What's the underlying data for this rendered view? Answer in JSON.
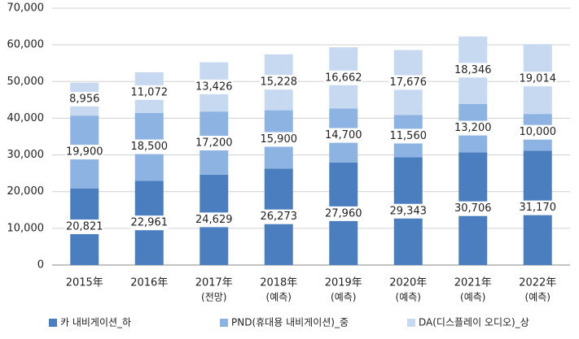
{
  "chart_data": {
    "type": "stacked-bar",
    "categories": [
      "2015年",
      "2016年",
      "2017年",
      "2018年",
      "2019年",
      "2020年",
      "2021年",
      "2022年"
    ],
    "category_notes": [
      null,
      null,
      "(전망)",
      "(예측)",
      "(예측)",
      "(예측)",
      "(예측)",
      "(예측)"
    ],
    "series": [
      {
        "name": "카 내비게이션_하",
        "color": "#4a7ebf",
        "values": [
          20821,
          22961,
          24629,
          26273,
          27960,
          29343,
          30706,
          31170
        ],
        "value_labels": [
          "20,821",
          "22,961",
          "24,629",
          "26,273",
          "27,960",
          "29,343",
          "30,706",
          "31,170"
        ]
      },
      {
        "name": "PND(휴대용 내비게이션)_중",
        "color": "#8db3e2",
        "values": [
          19900,
          18500,
          17200,
          15900,
          14700,
          11560,
          13200,
          10000
        ],
        "value_labels": [
          "19,900",
          "18,500",
          "17,200",
          "15,900",
          "14,700",
          "11,560",
          "13,200",
          "10,000"
        ]
      },
      {
        "name": "DA(디스플레이 오디오)_상",
        "color": "#c6d9f1",
        "values": [
          8956,
          11072,
          13426,
          15228,
          16662,
          17676,
          18346,
          19014
        ],
        "value_labels": [
          "8,956",
          "11,072",
          "13,426",
          "15,228",
          "16,662",
          "17,676",
          "18,346",
          "19,014"
        ]
      }
    ],
    "ylim": [
      0,
      70000
    ],
    "yticks": [
      0,
      {
        "value": 10000,
        "label": "10,000"
      },
      {
        "value": 20000,
        "label": "20,000"
      },
      {
        "value": 30000,
        "label": "30,000"
      },
      {
        "value": 40000,
        "label": "40,000"
      },
      {
        "value": 50000,
        "label": "50,000"
      },
      {
        "value": 60000,
        "label": "60,000"
      },
      {
        "value": 70000,
        "label": "70,000"
      }
    ],
    "grid": true
  }
}
